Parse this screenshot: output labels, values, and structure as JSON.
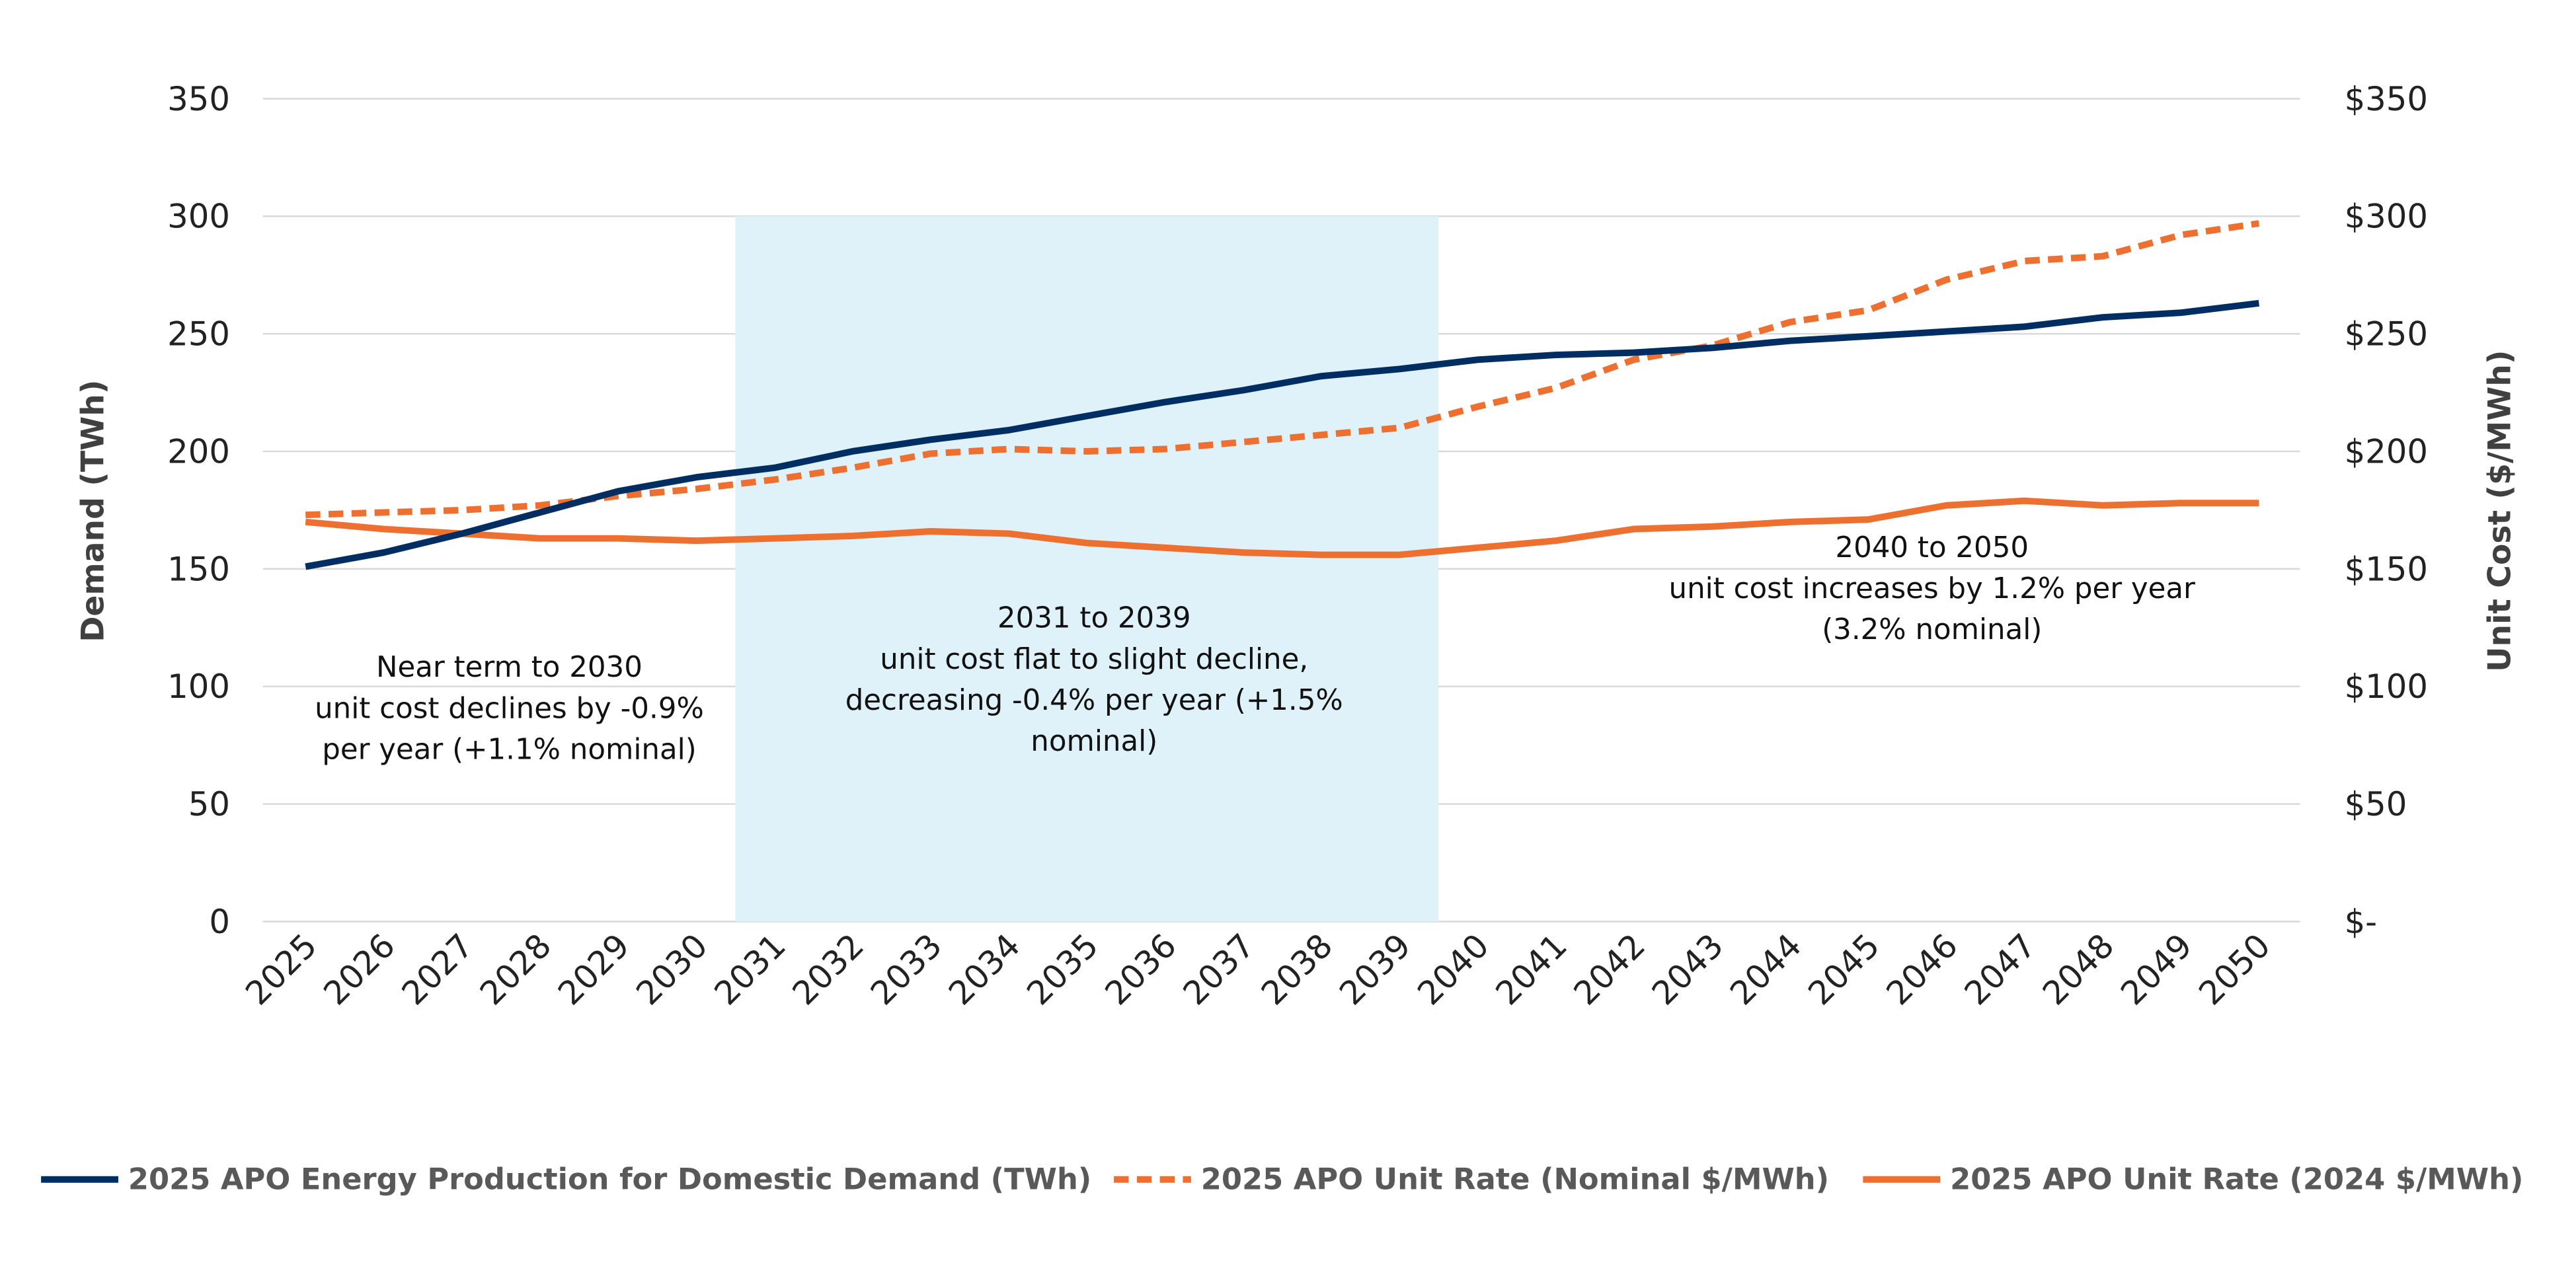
{
  "chart_data": {
    "type": "line",
    "title": "",
    "x": [
      2025,
      2026,
      2027,
      2028,
      2029,
      2030,
      2031,
      2032,
      2033,
      2034,
      2035,
      2036,
      2037,
      2038,
      2039,
      2040,
      2041,
      2042,
      2043,
      2044,
      2045,
      2046,
      2047,
      2048,
      2049,
      2050
    ],
    "x_tick_labels": [
      "2025",
      "2026",
      "2027",
      "2028",
      "2029",
      "2030",
      "2031",
      "2032",
      "2033",
      "2034",
      "2035",
      "2036",
      "2037",
      "2038",
      "2039",
      "2040",
      "2041",
      "2042",
      "2043",
      "2044",
      "2045",
      "2046",
      "2047",
      "2048",
      "2049",
      "2050"
    ],
    "ylabel": "Demand (TWh)",
    "ylim": [
      0,
      350
    ],
    "y_ticks": [
      "0",
      "50",
      "100",
      "150",
      "200",
      "250",
      "300",
      "350"
    ],
    "y2label": "Unit Cost ($/MWh)",
    "y2lim": [
      0,
      350
    ],
    "y2_ticks": [
      "$-",
      "$50",
      "$100",
      "$150",
      "$200",
      "$250",
      "$300",
      "$350"
    ],
    "grid": true,
    "legend_position": "bottom",
    "series": [
      {
        "name": "2025 APO Energy Production for Domestic Demand (TWh)",
        "axis": "left",
        "style": "solid",
        "color": "#002D62",
        "values": [
          151,
          157,
          165,
          174,
          183,
          189,
          193,
          200,
          205,
          209,
          215,
          221,
          226,
          232,
          235,
          239,
          241,
          242,
          244,
          247,
          249,
          251,
          253,
          257,
          259,
          263
        ]
      },
      {
        "name": "2025 APO Unit Rate (Nominal $/MWh)",
        "axis": "right",
        "style": "dashed",
        "color": "#ED7030",
        "values": [
          173,
          174,
          175,
          177,
          181,
          184,
          188,
          193,
          199,
          201,
          200,
          201,
          204,
          207,
          210,
          219,
          227,
          239,
          245,
          255,
          260,
          273,
          281,
          283,
          292,
          297
        ]
      },
      {
        "name": "2025 APO Unit Rate (2024 $/MWh)",
        "axis": "right",
        "style": "solid",
        "color": "#ED7030",
        "values": [
          170,
          167,
          165,
          163,
          163,
          162,
          163,
          164,
          166,
          165,
          161,
          159,
          157,
          156,
          156,
          159,
          162,
          167,
          168,
          170,
          171,
          177,
          179,
          177,
          178,
          178
        ]
      }
    ],
    "shaded_region": {
      "x_from": 2031,
      "x_to": 2039,
      "y_top": 300,
      "color": "#DFF1F9"
    },
    "annotations": [
      {
        "lines": [
          "Near term to 2030",
          "unit cost declines by -0.9%",
          "per year (+1.1% nominal)"
        ]
      },
      {
        "lines": [
          "2031 to 2039",
          "unit cost flat to slight decline,",
          "decreasing -0.4% per year (+1.5%",
          "nominal)"
        ]
      },
      {
        "lines": [
          "2040 to 2050",
          "unit cost increases by 1.2% per year",
          "(3.2% nominal)"
        ]
      }
    ],
    "gridline_color": "#D9D9D9"
  }
}
